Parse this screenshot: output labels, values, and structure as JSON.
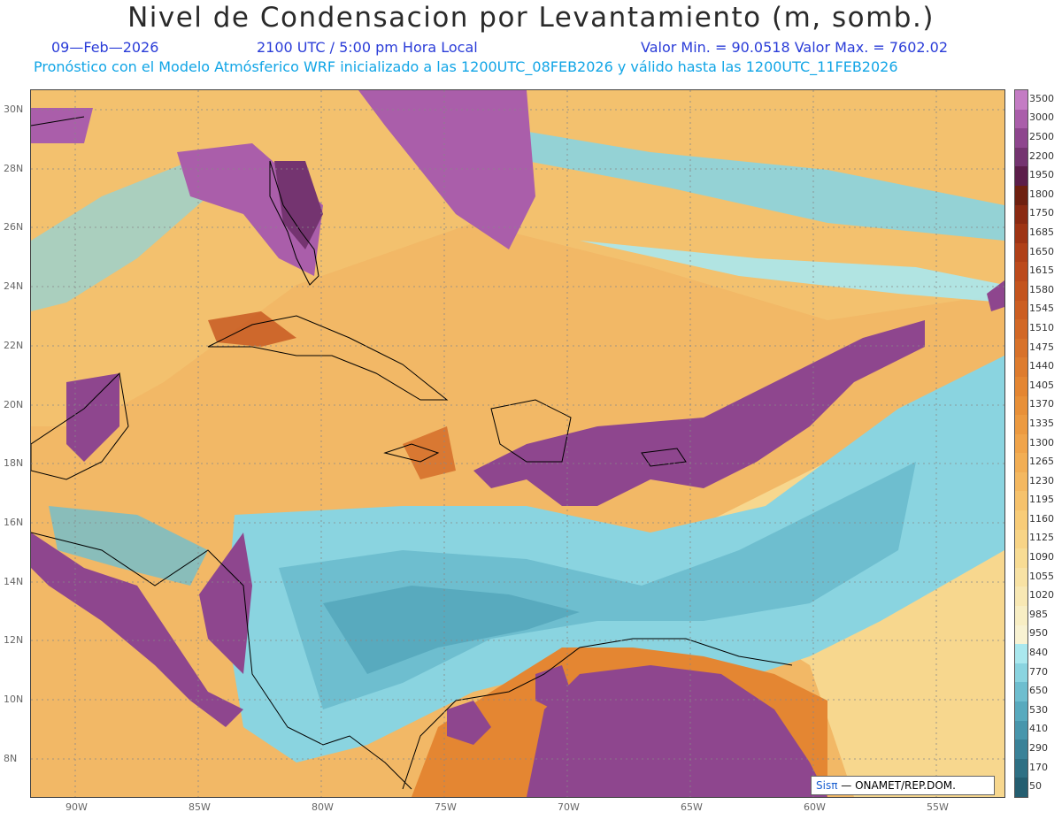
{
  "title": "Nivel de Condensacion por Levantamiento (m, somb.)",
  "date": "09—Feb—2026",
  "time": "2100 UTC / 5:00 pm Hora Local",
  "min_max": "Valor Min. = 90.0518   Valor Max. = 7602.02",
  "forecast": "Pronóstico con el Modelo Atmósferico WRF inicializado a las 1200UTC_08FEB2026 y válido hasta las  1200UTC_11FEB2026",
  "lat_labels": [
    "30N",
    "28N",
    "26N",
    "24N",
    "22N",
    "20N",
    "18N",
    "16N",
    "14N",
    "12N",
    "10N",
    "8N"
  ],
  "lon_labels": [
    "90W",
    "85W",
    "80W",
    "75W",
    "70W",
    "65W",
    "60W",
    "55W"
  ],
  "colorbar": {
    "labels": [
      "3500",
      "3000",
      "2500",
      "2200",
      "1950",
      "1800",
      "1750",
      "1685",
      "1650",
      "1615",
      "1580",
      "1545",
      "1510",
      "1475",
      "1440",
      "1405",
      "1370",
      "1335",
      "1300",
      "1265",
      "1230",
      "1195",
      "1160",
      "1125",
      "1090",
      "1055",
      "1020",
      "985",
      "950",
      "840",
      "770",
      "650",
      "530",
      "410",
      "290",
      "170",
      "50"
    ],
    "colors": [
      "#c47cc4",
      "#aa5eaa",
      "#8e468e",
      "#743470",
      "#5c1e4a",
      "#6e2010",
      "#8a2a12",
      "#9e3414",
      "#b04018",
      "#bc4a1c",
      "#c4541e",
      "#cc5e22",
      "#d26826",
      "#d8722a",
      "#de7c2e",
      "#e48632",
      "#e89038",
      "#ec9a40",
      "#f0a44a",
      "#f2ae54",
      "#f4b860",
      "#f6c26c",
      "#f8cc78",
      "#f8d486",
      "#f8dc94",
      "#f8e2a4",
      "#f8e8b4",
      "#f8eec4",
      "#f8f2d2",
      "#aae8ee",
      "#8ad4e0",
      "#6ebecf",
      "#58aabe",
      "#4896ac",
      "#3a8298",
      "#2e7084",
      "#245e70"
    ]
  },
  "credit": {
    "logo": "Sisπ",
    "text": "—  ONAMET/REP.DOM."
  }
}
